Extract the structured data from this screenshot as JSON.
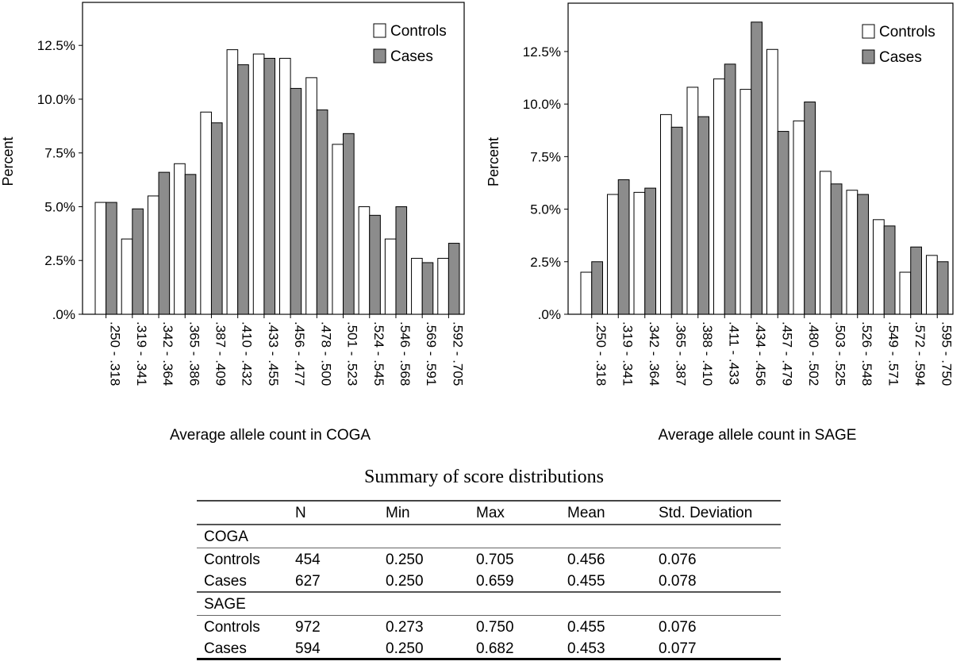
{
  "chart_data": [
    {
      "type": "bar",
      "xlabel": "Average allele count in COGA",
      "ylabel": "Percent",
      "ylim": [
        0,
        14.5
      ],
      "yticks": [
        ".0%",
        "2.5%",
        "5.0%",
        "7.5%",
        "10.0%",
        "12.5%"
      ],
      "legend_position": "top-right",
      "categories": [
        ".250 - .318",
        ".319 - .341",
        ".342 - .364",
        ".365 - .386",
        ".387 - .409",
        ".410 - .432",
        ".433 - .455",
        ".456 - .477",
        ".478 - .500",
        ".501 - .523",
        ".524 - .545",
        ".546 - .568",
        ".569 - .591",
        ".592 - .705"
      ],
      "series": [
        {
          "name": "Controls",
          "color": "#ffffff",
          "values": [
            5.2,
            3.5,
            5.5,
            7.0,
            9.4,
            12.3,
            12.1,
            11.9,
            11.0,
            7.9,
            5.0,
            3.5,
            2.6,
            2.6
          ]
        },
        {
          "name": "Cases",
          "color": "#8c8c8c",
          "values": [
            5.2,
            4.9,
            6.6,
            6.5,
            8.9,
            11.6,
            11.9,
            10.5,
            9.5,
            8.4,
            4.6,
            5.0,
            2.4,
            3.3
          ]
        }
      ]
    },
    {
      "type": "bar",
      "xlabel": "Average allele count in SAGE",
      "ylabel": "Percent",
      "ylim": [
        0,
        14.8
      ],
      "yticks": [
        ".0%",
        "2.5%",
        "5.0%",
        "7.5%",
        "10.0%",
        "12.5%"
      ],
      "legend_position": "top-right",
      "categories": [
        ".250 - .318",
        ".319 - .341",
        ".342 - .364",
        ".365 - .387",
        ".388 - .410",
        ".411 - .433",
        ".434 - .456",
        ".457 - .479",
        ".480 - .502",
        ".503 - .525",
        ".526 - .548",
        ".549 - .571",
        ".572 - .594",
        ".595 - .750"
      ],
      "series": [
        {
          "name": "Controls",
          "color": "#ffffff",
          "values": [
            2.0,
            5.7,
            5.8,
            9.5,
            10.8,
            11.2,
            10.7,
            12.6,
            9.2,
            6.8,
            5.9,
            4.5,
            2.0,
            2.8
          ]
        },
        {
          "name": "Cases",
          "color": "#8c8c8c",
          "values": [
            2.5,
            6.4,
            6.0,
            8.9,
            9.4,
            11.9,
            13.9,
            8.7,
            10.1,
            6.2,
            5.7,
            4.2,
            3.2,
            2.5
          ]
        }
      ]
    }
  ],
  "table": {
    "title": "Summary of score distributions",
    "headers": [
      "",
      "N",
      "Min",
      "Max",
      "Mean",
      "Std. Deviation"
    ],
    "groups": [
      {
        "name": "COGA",
        "rows": [
          [
            "Controls",
            "454",
            "0.250",
            "0.705",
            "0.456",
            "0.076"
          ],
          [
            "Cases",
            "627",
            "0.250",
            "0.659",
            "0.455",
            "0.078"
          ]
        ]
      },
      {
        "name": "SAGE",
        "rows": [
          [
            "Controls",
            "972",
            "0.273",
            "0.750",
            "0.455",
            "0.076"
          ],
          [
            "Cases",
            "594",
            "0.250",
            "0.682",
            "0.453",
            "0.077"
          ]
        ]
      }
    ]
  }
}
